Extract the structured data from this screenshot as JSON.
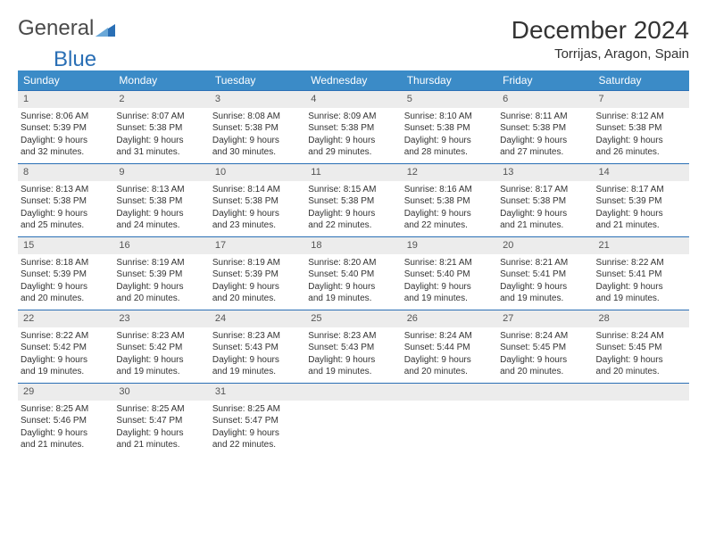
{
  "logo": {
    "text1": "General",
    "text2": "Blue"
  },
  "title": "December 2024",
  "location": "Torrijas, Aragon, Spain",
  "colors": {
    "header_bg": "#3b8bc7",
    "header_text": "#ffffff",
    "border": "#2a6fb5",
    "daynum_bg": "#ececec",
    "logo_gray": "#4a4a4a",
    "logo_blue": "#2a6fb5"
  },
  "typography": {
    "title_fontsize": 28,
    "location_fontsize": 15,
    "dayheader_fontsize": 12,
    "cell_fontsize": 10
  },
  "day_headers": [
    "Sunday",
    "Monday",
    "Tuesday",
    "Wednesday",
    "Thursday",
    "Friday",
    "Saturday"
  ],
  "weeks": [
    [
      {
        "num": "1",
        "sunrise": "Sunrise: 8:06 AM",
        "sunset": "Sunset: 5:39 PM",
        "day1": "Daylight: 9 hours",
        "day2": "and 32 minutes."
      },
      {
        "num": "2",
        "sunrise": "Sunrise: 8:07 AM",
        "sunset": "Sunset: 5:38 PM",
        "day1": "Daylight: 9 hours",
        "day2": "and 31 minutes."
      },
      {
        "num": "3",
        "sunrise": "Sunrise: 8:08 AM",
        "sunset": "Sunset: 5:38 PM",
        "day1": "Daylight: 9 hours",
        "day2": "and 30 minutes."
      },
      {
        "num": "4",
        "sunrise": "Sunrise: 8:09 AM",
        "sunset": "Sunset: 5:38 PM",
        "day1": "Daylight: 9 hours",
        "day2": "and 29 minutes."
      },
      {
        "num": "5",
        "sunrise": "Sunrise: 8:10 AM",
        "sunset": "Sunset: 5:38 PM",
        "day1": "Daylight: 9 hours",
        "day2": "and 28 minutes."
      },
      {
        "num": "6",
        "sunrise": "Sunrise: 8:11 AM",
        "sunset": "Sunset: 5:38 PM",
        "day1": "Daylight: 9 hours",
        "day2": "and 27 minutes."
      },
      {
        "num": "7",
        "sunrise": "Sunrise: 8:12 AM",
        "sunset": "Sunset: 5:38 PM",
        "day1": "Daylight: 9 hours",
        "day2": "and 26 minutes."
      }
    ],
    [
      {
        "num": "8",
        "sunrise": "Sunrise: 8:13 AM",
        "sunset": "Sunset: 5:38 PM",
        "day1": "Daylight: 9 hours",
        "day2": "and 25 minutes."
      },
      {
        "num": "9",
        "sunrise": "Sunrise: 8:13 AM",
        "sunset": "Sunset: 5:38 PM",
        "day1": "Daylight: 9 hours",
        "day2": "and 24 minutes."
      },
      {
        "num": "10",
        "sunrise": "Sunrise: 8:14 AM",
        "sunset": "Sunset: 5:38 PM",
        "day1": "Daylight: 9 hours",
        "day2": "and 23 minutes."
      },
      {
        "num": "11",
        "sunrise": "Sunrise: 8:15 AM",
        "sunset": "Sunset: 5:38 PM",
        "day1": "Daylight: 9 hours",
        "day2": "and 22 minutes."
      },
      {
        "num": "12",
        "sunrise": "Sunrise: 8:16 AM",
        "sunset": "Sunset: 5:38 PM",
        "day1": "Daylight: 9 hours",
        "day2": "and 22 minutes."
      },
      {
        "num": "13",
        "sunrise": "Sunrise: 8:17 AM",
        "sunset": "Sunset: 5:38 PM",
        "day1": "Daylight: 9 hours",
        "day2": "and 21 minutes."
      },
      {
        "num": "14",
        "sunrise": "Sunrise: 8:17 AM",
        "sunset": "Sunset: 5:39 PM",
        "day1": "Daylight: 9 hours",
        "day2": "and 21 minutes."
      }
    ],
    [
      {
        "num": "15",
        "sunrise": "Sunrise: 8:18 AM",
        "sunset": "Sunset: 5:39 PM",
        "day1": "Daylight: 9 hours",
        "day2": "and 20 minutes."
      },
      {
        "num": "16",
        "sunrise": "Sunrise: 8:19 AM",
        "sunset": "Sunset: 5:39 PM",
        "day1": "Daylight: 9 hours",
        "day2": "and 20 minutes."
      },
      {
        "num": "17",
        "sunrise": "Sunrise: 8:19 AM",
        "sunset": "Sunset: 5:39 PM",
        "day1": "Daylight: 9 hours",
        "day2": "and 20 minutes."
      },
      {
        "num": "18",
        "sunrise": "Sunrise: 8:20 AM",
        "sunset": "Sunset: 5:40 PM",
        "day1": "Daylight: 9 hours",
        "day2": "and 19 minutes."
      },
      {
        "num": "19",
        "sunrise": "Sunrise: 8:21 AM",
        "sunset": "Sunset: 5:40 PM",
        "day1": "Daylight: 9 hours",
        "day2": "and 19 minutes."
      },
      {
        "num": "20",
        "sunrise": "Sunrise: 8:21 AM",
        "sunset": "Sunset: 5:41 PM",
        "day1": "Daylight: 9 hours",
        "day2": "and 19 minutes."
      },
      {
        "num": "21",
        "sunrise": "Sunrise: 8:22 AM",
        "sunset": "Sunset: 5:41 PM",
        "day1": "Daylight: 9 hours",
        "day2": "and 19 minutes."
      }
    ],
    [
      {
        "num": "22",
        "sunrise": "Sunrise: 8:22 AM",
        "sunset": "Sunset: 5:42 PM",
        "day1": "Daylight: 9 hours",
        "day2": "and 19 minutes."
      },
      {
        "num": "23",
        "sunrise": "Sunrise: 8:23 AM",
        "sunset": "Sunset: 5:42 PM",
        "day1": "Daylight: 9 hours",
        "day2": "and 19 minutes."
      },
      {
        "num": "24",
        "sunrise": "Sunrise: 8:23 AM",
        "sunset": "Sunset: 5:43 PM",
        "day1": "Daylight: 9 hours",
        "day2": "and 19 minutes."
      },
      {
        "num": "25",
        "sunrise": "Sunrise: 8:23 AM",
        "sunset": "Sunset: 5:43 PM",
        "day1": "Daylight: 9 hours",
        "day2": "and 19 minutes."
      },
      {
        "num": "26",
        "sunrise": "Sunrise: 8:24 AM",
        "sunset": "Sunset: 5:44 PM",
        "day1": "Daylight: 9 hours",
        "day2": "and 20 minutes."
      },
      {
        "num": "27",
        "sunrise": "Sunrise: 8:24 AM",
        "sunset": "Sunset: 5:45 PM",
        "day1": "Daylight: 9 hours",
        "day2": "and 20 minutes."
      },
      {
        "num": "28",
        "sunrise": "Sunrise: 8:24 AM",
        "sunset": "Sunset: 5:45 PM",
        "day1": "Daylight: 9 hours",
        "day2": "and 20 minutes."
      }
    ],
    [
      {
        "num": "29",
        "sunrise": "Sunrise: 8:25 AM",
        "sunset": "Sunset: 5:46 PM",
        "day1": "Daylight: 9 hours",
        "day2": "and 21 minutes."
      },
      {
        "num": "30",
        "sunrise": "Sunrise: 8:25 AM",
        "sunset": "Sunset: 5:47 PM",
        "day1": "Daylight: 9 hours",
        "day2": "and 21 minutes."
      },
      {
        "num": "31",
        "sunrise": "Sunrise: 8:25 AM",
        "sunset": "Sunset: 5:47 PM",
        "day1": "Daylight: 9 hours",
        "day2": "and 22 minutes."
      },
      {
        "empty": true
      },
      {
        "empty": true
      },
      {
        "empty": true
      },
      {
        "empty": true
      }
    ]
  ]
}
